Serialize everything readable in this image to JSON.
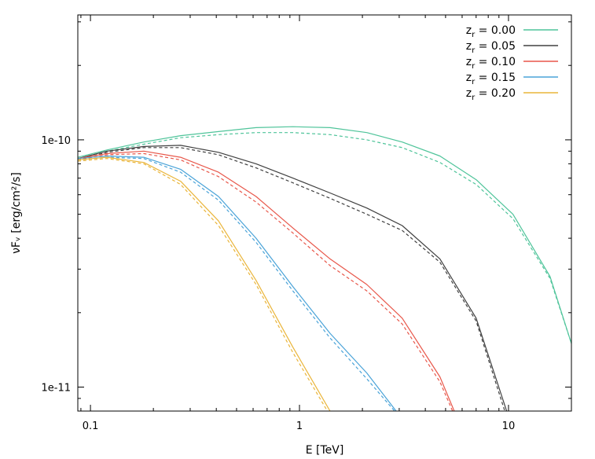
{
  "chart_data": {
    "type": "line",
    "title": "",
    "xlabel": "E [TeV]",
    "ylabel": "νFᵥ [erg/cm²/s]",
    "x_scale": "log",
    "y_scale": "log",
    "xlim": [
      0.087,
      20
    ],
    "ylim": [
      8e-12,
      3.2e-10
    ],
    "x_ticks": [
      {
        "value": 0.1,
        "label": "0.1"
      },
      {
        "value": 1,
        "label": "1"
      },
      {
        "value": 10,
        "label": "10"
      }
    ],
    "y_ticks": [
      {
        "value": 1e-11,
        "label": "1e-11"
      },
      {
        "value": 1e-10,
        "label": "1e-10"
      }
    ],
    "grid": false,
    "legend_position": "top-right",
    "series": [
      {
        "name": "z_r = 0.00",
        "name_base": "z",
        "name_sub": "r",
        "name_value": " = 0.00",
        "color": "#4fc49a",
        "solid": {
          "x": [
            0.087,
            0.12,
            0.18,
            0.27,
            0.41,
            0.62,
            0.93,
            1.4,
            2.1,
            3.1,
            4.7,
            7.0,
            10.5,
            15.8,
            20
          ],
          "y": [
            8.5e-11,
            9.1e-11,
            9.8e-11,
            1.04e-10,
            1.08e-10,
            1.12e-10,
            1.13e-10,
            1.12e-10,
            1.07e-10,
            9.8e-11,
            8.6e-11,
            6.9e-11,
            5e-11,
            2.8e-11,
            1.5e-11
          ]
        },
        "dashed": {
          "x": [
            0.087,
            0.12,
            0.18,
            0.27,
            0.41,
            0.62,
            0.93,
            1.4,
            2.1,
            3.1,
            4.7,
            7.0,
            10.5,
            15.8,
            20
          ],
          "y": [
            8.4e-11,
            9e-11,
            9.6e-11,
            1.02e-10,
            1.05e-10,
            1.07e-10,
            1.07e-10,
            1.05e-10,
            1e-10,
            9.3e-11,
            8.1e-11,
            6.6e-11,
            4.8e-11,
            2.75e-11,
            1.5e-11
          ]
        }
      },
      {
        "name": "z_r = 0.05",
        "name_base": "z",
        "name_sub": "r",
        "name_value": " = 0.05",
        "color": "#404040",
        "solid": {
          "x": [
            0.087,
            0.12,
            0.18,
            0.27,
            0.41,
            0.62,
            0.93,
            1.4,
            2.1,
            3.1,
            4.7,
            7.0,
            9.8
          ],
          "y": [
            8.4e-11,
            9e-11,
            9.4e-11,
            9.5e-11,
            8.9e-11,
            8e-11,
            7e-11,
            6.1e-11,
            5.3e-11,
            4.5e-11,
            3.3e-11,
            1.9e-11,
            8e-12
          ]
        },
        "dashed": {
          "x": [
            0.087,
            0.12,
            0.18,
            0.27,
            0.41,
            0.62,
            0.93,
            1.4,
            2.1,
            3.1,
            4.7,
            7.0,
            9.6
          ],
          "y": [
            8.3e-11,
            8.9e-11,
            9.3e-11,
            9.3e-11,
            8.7e-11,
            7.7e-11,
            6.7e-11,
            5.8e-11,
            5e-11,
            4.3e-11,
            3.2e-11,
            1.85e-11,
            8e-12
          ]
        }
      },
      {
        "name": "z_r = 0.10",
        "name_base": "z",
        "name_sub": "r",
        "name_value": " = 0.10",
        "color": "#e8574a",
        "solid": {
          "x": [
            0.087,
            0.12,
            0.18,
            0.27,
            0.41,
            0.62,
            0.93,
            1.4,
            2.1,
            3.1,
            4.7,
            5.5
          ],
          "y": [
            8.4e-11,
            8.8e-11,
            9e-11,
            8.5e-11,
            7.4e-11,
            5.9e-11,
            4.4e-11,
            3.3e-11,
            2.6e-11,
            1.9e-11,
            1.1e-11,
            8e-12
          ]
        },
        "dashed": {
          "x": [
            0.087,
            0.12,
            0.18,
            0.27,
            0.41,
            0.62,
            0.93,
            1.4,
            2.1,
            3.1,
            4.7,
            5.4
          ],
          "y": [
            8.3e-11,
            8.7e-11,
            8.8e-11,
            8.3e-11,
            7.1e-11,
            5.6e-11,
            4.2e-11,
            3.1e-11,
            2.45e-11,
            1.8e-11,
            1.05e-11,
            8e-12
          ]
        }
      },
      {
        "name": "z_r = 0.15",
        "name_base": "z",
        "name_sub": "r",
        "name_value": " = 0.15",
        "color": "#4aa3d8",
        "solid": {
          "x": [
            0.087,
            0.12,
            0.18,
            0.27,
            0.41,
            0.62,
            0.93,
            1.4,
            2.1,
            2.9
          ],
          "y": [
            8.4e-11,
            8.6e-11,
            8.5e-11,
            7.6e-11,
            5.9e-11,
            4e-11,
            2.55e-11,
            1.65e-11,
            1.14e-11,
            8e-12
          ]
        },
        "dashed": {
          "x": [
            0.087,
            0.12,
            0.18,
            0.27,
            0.41,
            0.62,
            0.93,
            1.4,
            2.1,
            2.85
          ],
          "y": [
            8.3e-11,
            8.5e-11,
            8.4e-11,
            7.4e-11,
            5.7e-11,
            3.85e-11,
            2.45e-11,
            1.58e-11,
            1.08e-11,
            8e-12
          ]
        }
      },
      {
        "name": "z_r = 0.20",
        "name_base": "z",
        "name_sub": "r",
        "name_value": " = 0.20",
        "color": "#eab53a",
        "solid": {
          "x": [
            0.087,
            0.12,
            0.18,
            0.27,
            0.41,
            0.62,
            0.93,
            1.4
          ],
          "y": [
            8.3e-11,
            8.5e-11,
            8.1e-11,
            6.8e-11,
            4.7e-11,
            2.7e-11,
            1.45e-11,
            8e-12
          ]
        },
        "dashed": {
          "x": [
            0.087,
            0.12,
            0.18,
            0.27,
            0.41,
            0.62,
            0.93,
            1.36
          ],
          "y": [
            8.2e-11,
            8.4e-11,
            8e-11,
            6.6e-11,
            4.5e-11,
            2.6e-11,
            1.38e-11,
            8e-12
          ]
        }
      }
    ]
  }
}
